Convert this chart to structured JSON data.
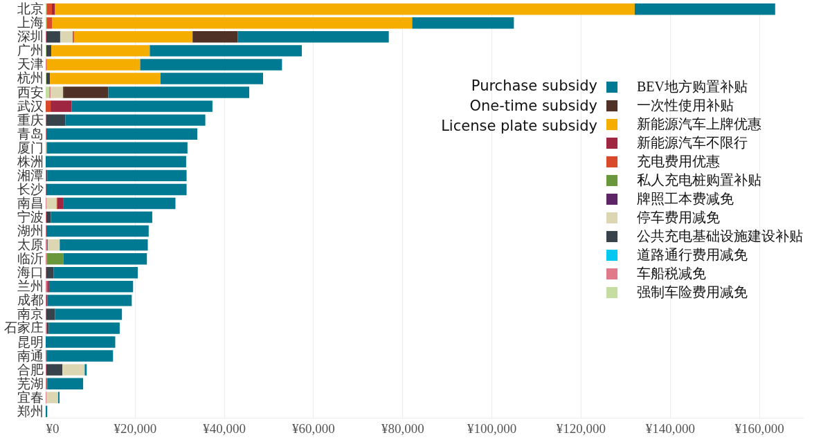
{
  "chart_data": {
    "type": "bar",
    "orientation": "horizontal",
    "stacked": true,
    "categories": [
      "北京",
      "上海",
      "深圳",
      "广州",
      "天津",
      "杭州",
      "西安",
      "武汉",
      "重庆",
      "青岛",
      "厦门",
      "株洲",
      "湘潭",
      "长沙",
      "南昌",
      "宁波",
      "湖州",
      "太原",
      "临沂",
      "海口",
      "兰州",
      "成都",
      "南京",
      "石家庄",
      "昆明",
      "南通",
      "合肥",
      "芜湖",
      "宜春",
      "郑州"
    ],
    "series": [
      {
        "name": "强制车险费用减免",
        "color": "#c3dea0",
        "values": [
          200,
          200,
          null,
          150,
          null,
          150,
          800,
          null,
          null,
          null,
          100,
          null,
          null,
          null,
          null,
          null,
          null,
          null,
          null,
          null,
          null,
          null,
          null,
          null,
          null,
          null,
          null,
          null,
          null,
          null
        ]
      },
      {
        "name": "车船税减免",
        "color": "#e07a8b",
        "values": [
          null,
          null,
          150,
          null,
          300,
          null,
          300,
          null,
          100,
          150,
          200,
          null,
          100,
          100,
          150,
          150,
          150,
          350,
          250,
          100,
          350,
          150,
          100,
          150,
          null,
          100,
          150,
          100,
          150,
          null
        ]
      },
      {
        "name": "道路通行费用减免",
        "color": "#00c8f0",
        "values": [
          null,
          null,
          null,
          null,
          null,
          null,
          null,
          null,
          null,
          null,
          null,
          null,
          null,
          null,
          null,
          null,
          null,
          null,
          null,
          null,
          null,
          null,
          null,
          100,
          null,
          null,
          null,
          null,
          null,
          null
        ]
      },
      {
        "name": "公共充电基础设施建设补贴",
        "color": "#37424a",
        "values": [
          null,
          null,
          3100,
          1100,
          null,
          800,
          null,
          null,
          4300,
          null,
          null,
          null,
          250,
          200,
          null,
          1000,
          null,
          150,
          null,
          1700,
          null,
          null,
          2000,
          450,
          null,
          100,
          3600,
          null,
          null,
          null
        ]
      },
      {
        "name": "停车费用减免",
        "color": "#ddd6b3",
        "values": [
          null,
          null,
          2800,
          null,
          null,
          null,
          2800,
          null,
          null,
          null,
          null,
          null,
          null,
          null,
          2300,
          null,
          null,
          2650,
          null,
          null,
          null,
          null,
          null,
          null,
          null,
          null,
          5000,
          null,
          2650,
          null
        ]
      },
      {
        "name": "牌照工本费减免",
        "color": "#5e2566",
        "values": [
          null,
          null,
          null,
          null,
          null,
          null,
          150,
          null,
          null,
          null,
          null,
          null,
          null,
          null,
          null,
          null,
          null,
          null,
          null,
          null,
          null,
          null,
          null,
          null,
          null,
          null,
          null,
          null,
          null,
          null
        ]
      },
      {
        "name": "私人充电桩购置补贴",
        "color": "#6a973c",
        "values": [
          null,
          null,
          null,
          null,
          null,
          null,
          null,
          null,
          null,
          null,
          null,
          null,
          null,
          null,
          null,
          null,
          null,
          null,
          3750,
          null,
          null,
          null,
          null,
          null,
          null,
          null,
          null,
          null,
          null,
          null
        ]
      },
      {
        "name": "充电费用优惠",
        "color": "#d84a2a",
        "values": [
          1200,
          1200,
          300,
          null,
          null,
          null,
          null,
          1100,
          null,
          null,
          null,
          null,
          null,
          null,
          150,
          null,
          null,
          null,
          null,
          null,
          null,
          null,
          null,
          null,
          null,
          null,
          null,
          250,
          null,
          null
        ]
      },
      {
        "name": "新能源汽车不限行",
        "color": "#9e2640",
        "values": [
          700,
          null,
          null,
          null,
          null,
          null,
          null,
          4700,
          null,
          null,
          null,
          null,
          null,
          null,
          1300,
          null,
          null,
          null,
          null,
          null,
          400,
          250,
          null,
          null,
          null,
          null,
          null,
          null,
          null,
          null
        ]
      },
      {
        "name": "新能源汽车上牌优惠",
        "color": "#f5ae00",
        "values": [
          130000,
          80800,
          26600,
          22100,
          20900,
          24800,
          null,
          null,
          null,
          null,
          null,
          null,
          null,
          null,
          null,
          null,
          null,
          null,
          null,
          null,
          null,
          null,
          null,
          null,
          null,
          null,
          null,
          null,
          null,
          null
        ]
      },
      {
        "name": "一次性使用补贴",
        "color": "#4f3126",
        "values": [
          null,
          null,
          10100,
          null,
          null,
          null,
          10000,
          null,
          null,
          null,
          null,
          null,
          null,
          null,
          null,
          null,
          null,
          null,
          null,
          null,
          null,
          null,
          null,
          null,
          null,
          null,
          null,
          null,
          null,
          null
        ]
      },
      {
        "name": "BEV地方购置补贴",
        "color": "#007a93",
        "values": [
          31500,
          22800,
          33900,
          34100,
          31800,
          23000,
          31600,
          31600,
          31400,
          33850,
          31500,
          31500,
          31250,
          31300,
          25200,
          22750,
          22950,
          19750,
          18700,
          18850,
          18850,
          18900,
          15000,
          15900,
          15600,
          14900,
          450,
          8050,
          300,
          350
        ]
      }
    ],
    "xlim": [
      0,
      170000
    ],
    "xticks": [
      {
        "value": 0,
        "label": "¥0"
      },
      {
        "value": 20000,
        "label": "¥20,000"
      },
      {
        "value": 40000,
        "label": "¥40,000"
      },
      {
        "value": 60000,
        "label": "¥60,000"
      },
      {
        "value": 80000,
        "label": "¥80,000"
      },
      {
        "value": 100000,
        "label": "¥100,000"
      },
      {
        "value": 120000,
        "label": "¥120,000"
      },
      {
        "value": 140000,
        "label": "¥140,000"
      },
      {
        "value": 160000,
        "label": "¥160,000"
      }
    ],
    "grid": "x",
    "legend": "right",
    "annotations": [
      "Purchase subsidy",
      "One-time subsidy",
      "License plate subsidy"
    ]
  }
}
